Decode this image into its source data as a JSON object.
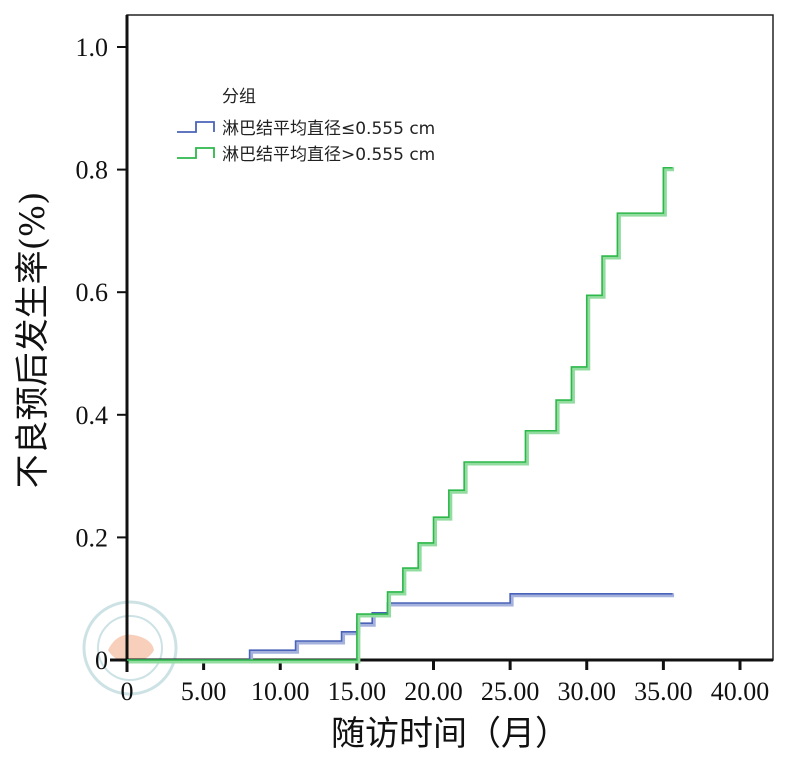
{
  "chart_data": {
    "type": "line",
    "step": true,
    "title": "",
    "xlabel": "随访时间（月）",
    "ylabel": "不良预后发生率(%)",
    "xlim": [
      0,
      40
    ],
    "ylim": [
      0,
      1.0
    ],
    "x_ticks": [
      "0",
      "5.00",
      "10.00",
      "15.00",
      "20.00",
      "25.00",
      "30.00",
      "35.00",
      "40.00"
    ],
    "x_tick_values": [
      0,
      5,
      10,
      15,
      20,
      25,
      30,
      35,
      40
    ],
    "y_ticks": [
      "0",
      "0.2",
      "0.4",
      "0.6",
      "0.8",
      "1.0"
    ],
    "y_tick_values": [
      0,
      0.2,
      0.4,
      0.6,
      0.8,
      1.0
    ],
    "legend_title": "分组",
    "legend_position": "top-left",
    "series": [
      {
        "name": "淋巴结平均直径≤0.555 cm",
        "color": "#4a63b8",
        "light_color": "#a4b1dc",
        "steps": [
          [
            0,
            0
          ],
          [
            8,
            0.016
          ],
          [
            11,
            0.031
          ],
          [
            14,
            0.046
          ],
          [
            15,
            0.06
          ],
          [
            16,
            0.077
          ],
          [
            17,
            0.093
          ],
          [
            25,
            0.108
          ]
        ],
        "end": 35.6
      },
      {
        "name": "淋巴结平均直径>0.555 cm",
        "color": "#2db84a",
        "light_color": "#93dca0",
        "steps": [
          [
            0,
            0
          ],
          [
            15,
            0.075
          ],
          [
            17,
            0.111
          ],
          [
            18,
            0.15
          ],
          [
            19,
            0.191
          ],
          [
            20,
            0.233
          ],
          [
            21,
            0.277
          ],
          [
            22,
            0.323
          ],
          [
            26,
            0.374
          ],
          [
            28,
            0.424
          ],
          [
            29,
            0.478
          ],
          [
            30,
            0.595
          ],
          [
            31,
            0.659
          ],
          [
            32,
            0.729
          ],
          [
            35,
            0.803
          ]
        ],
        "end": 35.6
      }
    ]
  }
}
